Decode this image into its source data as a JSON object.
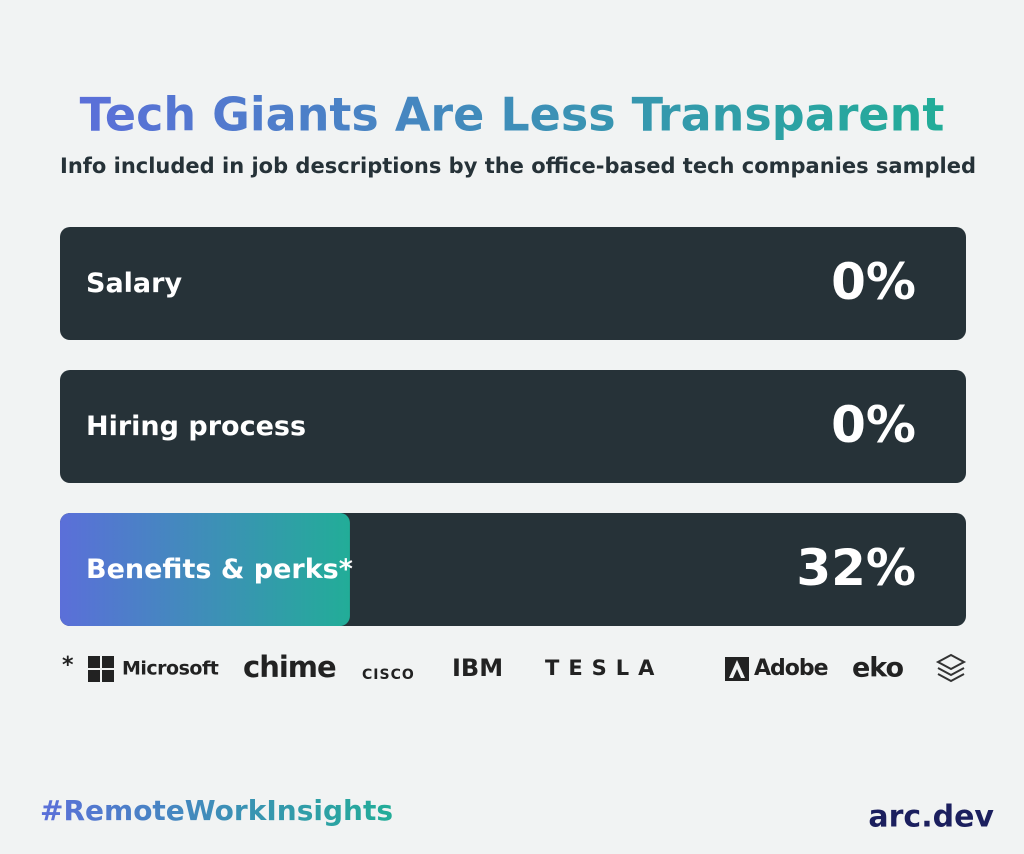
{
  "chart_data": {
    "type": "hbar",
    "title": "Tech Giants Are Less Transparent",
    "subtitle": "Info included in job descriptions by the office-based tech companies sampled",
    "categories": [
      "Salary",
      "Hiring process",
      "Benefits & perks*"
    ],
    "values": [
      0,
      0,
      32
    ],
    "value_labels": [
      "0%",
      "0%",
      "32%"
    ],
    "xlim": [
      0,
      100
    ],
    "track_color": "#263238",
    "color_start": "#5b6fd9",
    "color_end": "#22ad98",
    "footnote_marker": "*",
    "companies": [
      "Microsoft",
      "chime",
      "CISCO",
      "IBM",
      "TESLA",
      "Adobe",
      "eko"
    ],
    "hashtag": "#RemoteWorkInsights",
    "brand": "arc.dev"
  }
}
